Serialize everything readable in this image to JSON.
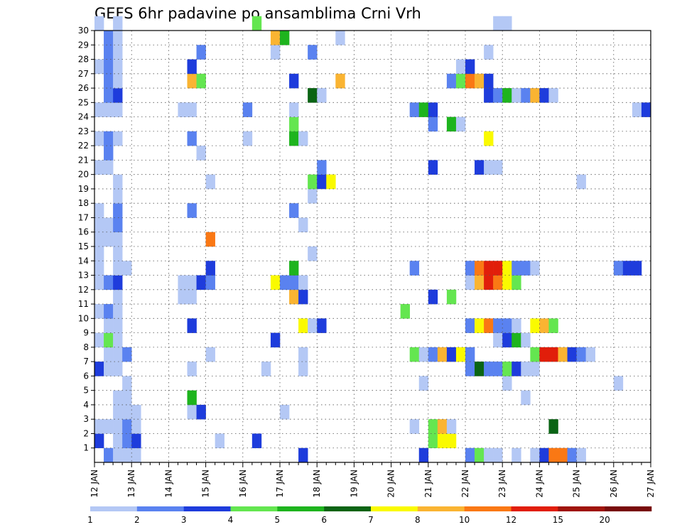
{
  "chart_data": {
    "type": "heatmap",
    "title": "GEFS 6hr padavine po ansamblima Crni Vrh",
    "xlabel": "",
    "ylabel": "",
    "x_ticks": [
      "12 JAN",
      "13 JAN",
      "14 JAN",
      "15 JAN",
      "16 JAN",
      "17 JAN",
      "18 JAN",
      "19 JAN",
      "20 JAN",
      "21 JAN",
      "22 JAN",
      "23 JAN",
      "24 JAN",
      "25 JAN",
      "26 JAN",
      "27 JAN"
    ],
    "x_range": [
      "12 JAN 00z",
      "27 JAN 00z"
    ],
    "x_step_hours": 6,
    "y_ticks": [
      1,
      2,
      3,
      4,
      5,
      6,
      7,
      8,
      9,
      10,
      11,
      12,
      13,
      14,
      15,
      16,
      17,
      18,
      19,
      20,
      21,
      22,
      23,
      24,
      25,
      26,
      27,
      28,
      29,
      30
    ],
    "y_range": [
      0,
      30
    ],
    "grid": true,
    "legend": {
      "placement": "bottom",
      "labels": [
        "1",
        "2",
        "3",
        "4",
        "5",
        "6",
        "7",
        "8",
        "10",
        "12",
        "15",
        "20"
      ],
      "colors": [
        "#b4c8f5",
        "#5a82f0",
        "#1e3cdc",
        "#64e650",
        "#1eb41e",
        "#0a6414",
        "#fafa00",
        "#fab432",
        "#fa7814",
        "#e11e0a",
        "#a0140a",
        "#780a0a"
      ]
    },
    "cells": [
      {
        "d": 0,
        "s": 1,
        "c": 2
      },
      {
        "d": 0,
        "s": 2,
        "c": 1
      },
      {
        "d": 0,
        "s": 3,
        "c": 1
      },
      {
        "d": 0,
        "s": 4,
        "c": 1
      },
      {
        "d": 1,
        "s": 0,
        "c": 3
      },
      {
        "d": 1,
        "s": 2,
        "c": 1
      },
      {
        "d": 1,
        "s": 3,
        "c": 2
      },
      {
        "d": 1,
        "s": 4,
        "c": 3
      },
      {
        "d": 2,
        "s": 0,
        "c": 1
      },
      {
        "d": 2,
        "s": 1,
        "c": 1
      },
      {
        "d": 2,
        "s": 2,
        "c": 1
      },
      {
        "d": 2,
        "s": 3,
        "c": 2
      },
      {
        "d": 2,
        "s": 4,
        "c": 1
      },
      {
        "d": 3,
        "s": 2,
        "c": 1
      },
      {
        "d": 3,
        "s": 3,
        "c": 1
      },
      {
        "d": 3,
        "s": 4,
        "c": 1
      },
      {
        "d": 4,
        "s": 2,
        "c": 1
      },
      {
        "d": 4,
        "s": 3,
        "c": 1
      },
      {
        "d": 5,
        "s": 3,
        "c": 1
      },
      {
        "d": 6,
        "s": 0,
        "c": 3
      },
      {
        "d": 6,
        "s": 1,
        "c": 1
      },
      {
        "d": 6,
        "s": 2,
        "c": 1
      },
      {
        "d": 7,
        "s": 1,
        "c": 1
      },
      {
        "d": 7,
        "s": 2,
        "c": 1
      },
      {
        "d": 7,
        "s": 3,
        "c": 2
      },
      {
        "d": 8,
        "s": 0,
        "c": 1
      },
      {
        "d": 8,
        "s": 1,
        "c": 4
      },
      {
        "d": 8,
        "s": 2,
        "c": 1
      },
      {
        "d": 9,
        "s": 1,
        "c": 1
      },
      {
        "d": 9,
        "s": 2,
        "c": 1
      },
      {
        "d": 10,
        "s": 0,
        "c": 1
      },
      {
        "d": 10,
        "s": 1,
        "c": 2
      },
      {
        "d": 10,
        "s": 2,
        "c": 1
      },
      {
        "d": 11,
        "s": 2,
        "c": 1
      },
      {
        "d": 12,
        "s": 0,
        "c": 1
      },
      {
        "d": 12,
        "s": 1,
        "c": 2
      },
      {
        "d": 12,
        "s": 2,
        "c": 3
      },
      {
        "d": 13,
        "s": 0,
        "c": 1
      },
      {
        "d": 13,
        "s": 2,
        "c": 1
      },
      {
        "d": 13,
        "s": 3,
        "c": 1
      },
      {
        "d": 14,
        "s": 0,
        "c": 1
      },
      {
        "d": 14,
        "s": 2,
        "c": 1
      },
      {
        "d": 15,
        "s": 0,
        "c": 1
      },
      {
        "d": 15,
        "s": 1,
        "c": 1
      },
      {
        "d": 15,
        "s": 2,
        "c": 1
      },
      {
        "d": 16,
        "s": 0,
        "c": 1
      },
      {
        "d": 16,
        "s": 1,
        "c": 1
      },
      {
        "d": 16,
        "s": 2,
        "c": 2
      },
      {
        "d": 17,
        "s": 0,
        "c": 1
      },
      {
        "d": 17,
        "s": 2,
        "c": 2
      },
      {
        "d": 18,
        "s": 2,
        "c": 1
      },
      {
        "d": 19,
        "s": 2,
        "c": 1
      },
      {
        "d": 20,
        "s": 0,
        "c": 1
      },
      {
        "d": 20,
        "s": 1,
        "c": 1
      },
      {
        "d": 21,
        "s": 1,
        "c": 2
      },
      {
        "d": 22,
        "s": 0,
        "c": 1
      },
      {
        "d": 22,
        "s": 1,
        "c": 2
      },
      {
        "d": 22,
        "s": 2,
        "c": 1
      },
      {
        "d": 24,
        "s": 0,
        "c": 1
      },
      {
        "d": 24,
        "s": 1,
        "c": 1
      },
      {
        "d": 24,
        "s": 2,
        "c": 1
      },
      {
        "d": 25,
        "s": 1,
        "c": 2
      },
      {
        "d": 25,
        "s": 2,
        "c": 3
      },
      {
        "d": 26,
        "s": 1,
        "c": 2
      },
      {
        "d": 26,
        "s": 2,
        "c": 1
      },
      {
        "d": 27,
        "s": 0,
        "c": 1
      },
      {
        "d": 27,
        "s": 1,
        "c": 2
      },
      {
        "d": 27,
        "s": 2,
        "c": 1
      },
      {
        "d": 28,
        "s": 1,
        "c": 2
      },
      {
        "d": 28,
        "s": 2,
        "c": 1
      },
      {
        "d": 29,
        "s": 1,
        "c": 2
      },
      {
        "d": 29,
        "s": 2,
        "c": 1
      },
      {
        "d": 30,
        "s": 0,
        "c": 1
      },
      {
        "d": 30,
        "s": 2,
        "c": 1
      },
      {
        "d": 0,
        "s": 22,
        "c": 3
      },
      {
        "d": 0,
        "s": 35,
        "c": 3
      },
      {
        "d": 0,
        "s": 40,
        "c": 2
      },
      {
        "d": 0,
        "s": 41,
        "c": 4
      },
      {
        "d": 0,
        "s": 42,
        "c": 1
      },
      {
        "d": 0,
        "s": 43,
        "c": 1
      },
      {
        "d": 0,
        "s": 45,
        "c": 1
      },
      {
        "d": 0,
        "s": 47,
        "c": 1
      },
      {
        "d": 0,
        "s": 48,
        "c": 3
      },
      {
        "d": 0,
        "s": 49,
        "c": 9
      },
      {
        "d": 0,
        "s": 50,
        "c": 9
      },
      {
        "d": 0,
        "s": 51,
        "c": 2
      },
      {
        "d": 0,
        "s": 52,
        "c": 1
      },
      {
        "d": 1,
        "s": 13,
        "c": 1
      },
      {
        "d": 1,
        "s": 17,
        "c": 3
      },
      {
        "d": 1,
        "s": 36,
        "c": 4
      },
      {
        "d": 1,
        "s": 37,
        "c": 7
      },
      {
        "d": 1,
        "s": 38,
        "c": 7
      },
      {
        "d": 2,
        "s": 34,
        "c": 1
      },
      {
        "d": 2,
        "s": 36,
        "c": 4
      },
      {
        "d": 2,
        "s": 37,
        "c": 8
      },
      {
        "d": 2,
        "s": 38,
        "c": 1
      },
      {
        "d": 2,
        "s": 49,
        "c": 6
      },
      {
        "d": 3,
        "s": 10,
        "c": 1
      },
      {
        "d": 3,
        "s": 11,
        "c": 3
      },
      {
        "d": 3,
        "s": 20,
        "c": 1
      },
      {
        "d": 4,
        "s": 10,
        "c": 5
      },
      {
        "d": 4,
        "s": 46,
        "c": 1
      },
      {
        "d": 5,
        "s": 35,
        "c": 1
      },
      {
        "d": 5,
        "s": 44,
        "c": 1
      },
      {
        "d": 5,
        "s": 56,
        "c": 1
      },
      {
        "d": 6,
        "s": 10,
        "c": 1
      },
      {
        "d": 6,
        "s": 18,
        "c": 1
      },
      {
        "d": 6,
        "s": 22,
        "c": 1
      },
      {
        "d": 6,
        "s": 40,
        "c": 2
      },
      {
        "d": 6,
        "s": 41,
        "c": 6
      },
      {
        "d": 6,
        "s": 42,
        "c": 2
      },
      {
        "d": 6,
        "s": 43,
        "c": 2
      },
      {
        "d": 6,
        "s": 44,
        "c": 4
      },
      {
        "d": 6,
        "s": 45,
        "c": 3
      },
      {
        "d": 6,
        "s": 46,
        "c": 1
      },
      {
        "d": 6,
        "s": 47,
        "c": 1
      },
      {
        "d": 7,
        "s": 12,
        "c": 1
      },
      {
        "d": 7,
        "s": 22,
        "c": 1
      },
      {
        "d": 7,
        "s": 34,
        "c": 4
      },
      {
        "d": 7,
        "s": 35,
        "c": 1
      },
      {
        "d": 7,
        "s": 36,
        "c": 2
      },
      {
        "d": 7,
        "s": 37,
        "c": 8
      },
      {
        "d": 7,
        "s": 38,
        "c": 3
      },
      {
        "d": 7,
        "s": 39,
        "c": 7
      },
      {
        "d": 7,
        "s": 40,
        "c": 2
      },
      {
        "d": 7,
        "s": 47,
        "c": 4
      },
      {
        "d": 7,
        "s": 48,
        "c": 10
      },
      {
        "d": 7,
        "s": 49,
        "c": 10
      },
      {
        "d": 7,
        "s": 50,
        "c": 8
      },
      {
        "d": 7,
        "s": 51,
        "c": 3
      },
      {
        "d": 7,
        "s": 52,
        "c": 2
      },
      {
        "d": 7,
        "s": 53,
        "c": 1
      },
      {
        "d": 8,
        "s": 19,
        "c": 3
      },
      {
        "d": 8,
        "s": 43,
        "c": 1
      },
      {
        "d": 8,
        "s": 44,
        "c": 3
      },
      {
        "d": 8,
        "s": 45,
        "c": 5
      },
      {
        "d": 8,
        "s": 46,
        "c": 1
      },
      {
        "d": 9,
        "s": 10,
        "c": 3
      },
      {
        "d": 9,
        "s": 22,
        "c": 7
      },
      {
        "d": 9,
        "s": 23,
        "c": 1
      },
      {
        "d": 9,
        "s": 24,
        "c": 3
      },
      {
        "d": 9,
        "s": 40,
        "c": 2
      },
      {
        "d": 9,
        "s": 41,
        "c": 7
      },
      {
        "d": 9,
        "s": 42,
        "c": 9
      },
      {
        "d": 9,
        "s": 43,
        "c": 2
      },
      {
        "d": 9,
        "s": 44,
        "c": 2
      },
      {
        "d": 9,
        "s": 45,
        "c": 1
      },
      {
        "d": 9,
        "s": 47,
        "c": 7
      },
      {
        "d": 9,
        "s": 48,
        "c": 8
      },
      {
        "d": 9,
        "s": 49,
        "c": 4
      },
      {
        "d": 10,
        "s": 33,
        "c": 4
      },
      {
        "d": 11,
        "s": 9,
        "c": 1
      },
      {
        "d": 11,
        "s": 10,
        "c": 1
      },
      {
        "d": 11,
        "s": 21,
        "c": 8
      },
      {
        "d": 11,
        "s": 22,
        "c": 3
      },
      {
        "d": 11,
        "s": 36,
        "c": 3
      },
      {
        "d": 11,
        "s": 38,
        "c": 4
      },
      {
        "d": 12,
        "s": 9,
        "c": 1
      },
      {
        "d": 12,
        "s": 10,
        "c": 1
      },
      {
        "d": 12,
        "s": 11,
        "c": 3
      },
      {
        "d": 12,
        "s": 12,
        "c": 2
      },
      {
        "d": 12,
        "s": 19,
        "c": 7
      },
      {
        "d": 12,
        "s": 20,
        "c": 2
      },
      {
        "d": 12,
        "s": 21,
        "c": 2
      },
      {
        "d": 12,
        "s": 22,
        "c": 1
      },
      {
        "d": 12,
        "s": 40,
        "c": 1
      },
      {
        "d": 12,
        "s": 41,
        "c": 8
      },
      {
        "d": 12,
        "s": 42,
        "c": 10
      },
      {
        "d": 12,
        "s": 43,
        "c": 9
      },
      {
        "d": 12,
        "s": 44,
        "c": 7
      },
      {
        "d": 12,
        "s": 45,
        "c": 4
      },
      {
        "d": 13,
        "s": 12,
        "c": 3
      },
      {
        "d": 13,
        "s": 21,
        "c": 5
      },
      {
        "d": 13,
        "s": 34,
        "c": 2
      },
      {
        "d": 13,
        "s": 40,
        "c": 2
      },
      {
        "d": 13,
        "s": 41,
        "c": 9
      },
      {
        "d": 13,
        "s": 42,
        "c": 10
      },
      {
        "d": 13,
        "s": 43,
        "c": 10
      },
      {
        "d": 13,
        "s": 44,
        "c": 7
      },
      {
        "d": 13,
        "s": 45,
        "c": 2
      },
      {
        "d": 13,
        "s": 46,
        "c": 2
      },
      {
        "d": 13,
        "s": 47,
        "c": 1
      },
      {
        "d": 13,
        "s": 56,
        "c": 2
      },
      {
        "d": 13,
        "s": 57,
        "c": 3
      },
      {
        "d": 13,
        "s": 58,
        "c": 3
      },
      {
        "d": 14,
        "s": 23,
        "c": 1
      },
      {
        "d": 15,
        "s": 12,
        "c": 9
      },
      {
        "d": 16,
        "s": 22,
        "c": 1
      },
      {
        "d": 17,
        "s": 10,
        "c": 2
      },
      {
        "d": 17,
        "s": 21,
        "c": 2
      },
      {
        "d": 18,
        "s": 23,
        "c": 1
      },
      {
        "d": 19,
        "s": 12,
        "c": 1
      },
      {
        "d": 19,
        "s": 23,
        "c": 4
      },
      {
        "d": 19,
        "s": 24,
        "c": 3
      },
      {
        "d": 19,
        "s": 25,
        "c": 7
      },
      {
        "d": 19,
        "s": 52,
        "c": 1
      },
      {
        "d": 20,
        "s": 24,
        "c": 2
      },
      {
        "d": 20,
        "s": 36,
        "c": 3
      },
      {
        "d": 20,
        "s": 41,
        "c": 3
      },
      {
        "d": 20,
        "s": 42,
        "c": 1
      },
      {
        "d": 20,
        "s": 43,
        "c": 1
      },
      {
        "d": 21,
        "s": 11,
        "c": 1
      },
      {
        "d": 22,
        "s": 10,
        "c": 2
      },
      {
        "d": 22,
        "s": 16,
        "c": 1
      },
      {
        "d": 22,
        "s": 21,
        "c": 5
      },
      {
        "d": 22,
        "s": 22,
        "c": 1
      },
      {
        "d": 22,
        "s": 42,
        "c": 7
      },
      {
        "d": 23,
        "s": 21,
        "c": 4
      },
      {
        "d": 23,
        "s": 36,
        "c": 2
      },
      {
        "d": 23,
        "s": 38,
        "c": 5
      },
      {
        "d": 23,
        "s": 39,
        "c": 1
      },
      {
        "d": 24,
        "s": 9,
        "c": 1
      },
      {
        "d": 24,
        "s": 10,
        "c": 1
      },
      {
        "d": 24,
        "s": 16,
        "c": 2
      },
      {
        "d": 24,
        "s": 21,
        "c": 1
      },
      {
        "d": 24,
        "s": 34,
        "c": 2
      },
      {
        "d": 24,
        "s": 35,
        "c": 5
      },
      {
        "d": 24,
        "s": 36,
        "c": 3
      },
      {
        "d": 24,
        "s": 58,
        "c": 1
      },
      {
        "d": 24,
        "s": 59,
        "c": 3
      },
      {
        "d": 25,
        "s": 23,
        "c": 6
      },
      {
        "d": 25,
        "s": 24,
        "c": 1
      },
      {
        "d": 25,
        "s": 42,
        "c": 3
      },
      {
        "d": 25,
        "s": 43,
        "c": 2
      },
      {
        "d": 25,
        "s": 44,
        "c": 5
      },
      {
        "d": 25,
        "s": 45,
        "c": 1
      },
      {
        "d": 25,
        "s": 46,
        "c": 2
      },
      {
        "d": 25,
        "s": 47,
        "c": 8
      },
      {
        "d": 25,
        "s": 48,
        "c": 3
      },
      {
        "d": 25,
        "s": 49,
        "c": 1
      },
      {
        "d": 26,
        "s": 10,
        "c": 8
      },
      {
        "d": 26,
        "s": 11,
        "c": 4
      },
      {
        "d": 26,
        "s": 21,
        "c": 3
      },
      {
        "d": 26,
        "s": 26,
        "c": 8
      },
      {
        "d": 26,
        "s": 38,
        "c": 2
      },
      {
        "d": 26,
        "s": 39,
        "c": 4
      },
      {
        "d": 26,
        "s": 40,
        "c": 9
      },
      {
        "d": 26,
        "s": 41,
        "c": 8
      },
      {
        "d": 26,
        "s": 42,
        "c": 3
      },
      {
        "d": 27,
        "s": 10,
        "c": 3
      },
      {
        "d": 27,
        "s": 39,
        "c": 1
      },
      {
        "d": 27,
        "s": 40,
        "c": 3
      },
      {
        "d": 28,
        "s": 11,
        "c": 2
      },
      {
        "d": 28,
        "s": 19,
        "c": 1
      },
      {
        "d": 28,
        "s": 23,
        "c": 2
      },
      {
        "d": 28,
        "s": 42,
        "c": 1
      },
      {
        "d": 29,
        "s": 19,
        "c": 8
      },
      {
        "d": 29,
        "s": 20,
        "c": 5
      },
      {
        "d": 29,
        "s": 26,
        "c": 1
      },
      {
        "d": 30,
        "s": 17,
        "c": 4
      },
      {
        "d": 30,
        "s": 43,
        "c": 1
      },
      {
        "d": 30,
        "s": 44,
        "c": 1
      }
    ]
  }
}
